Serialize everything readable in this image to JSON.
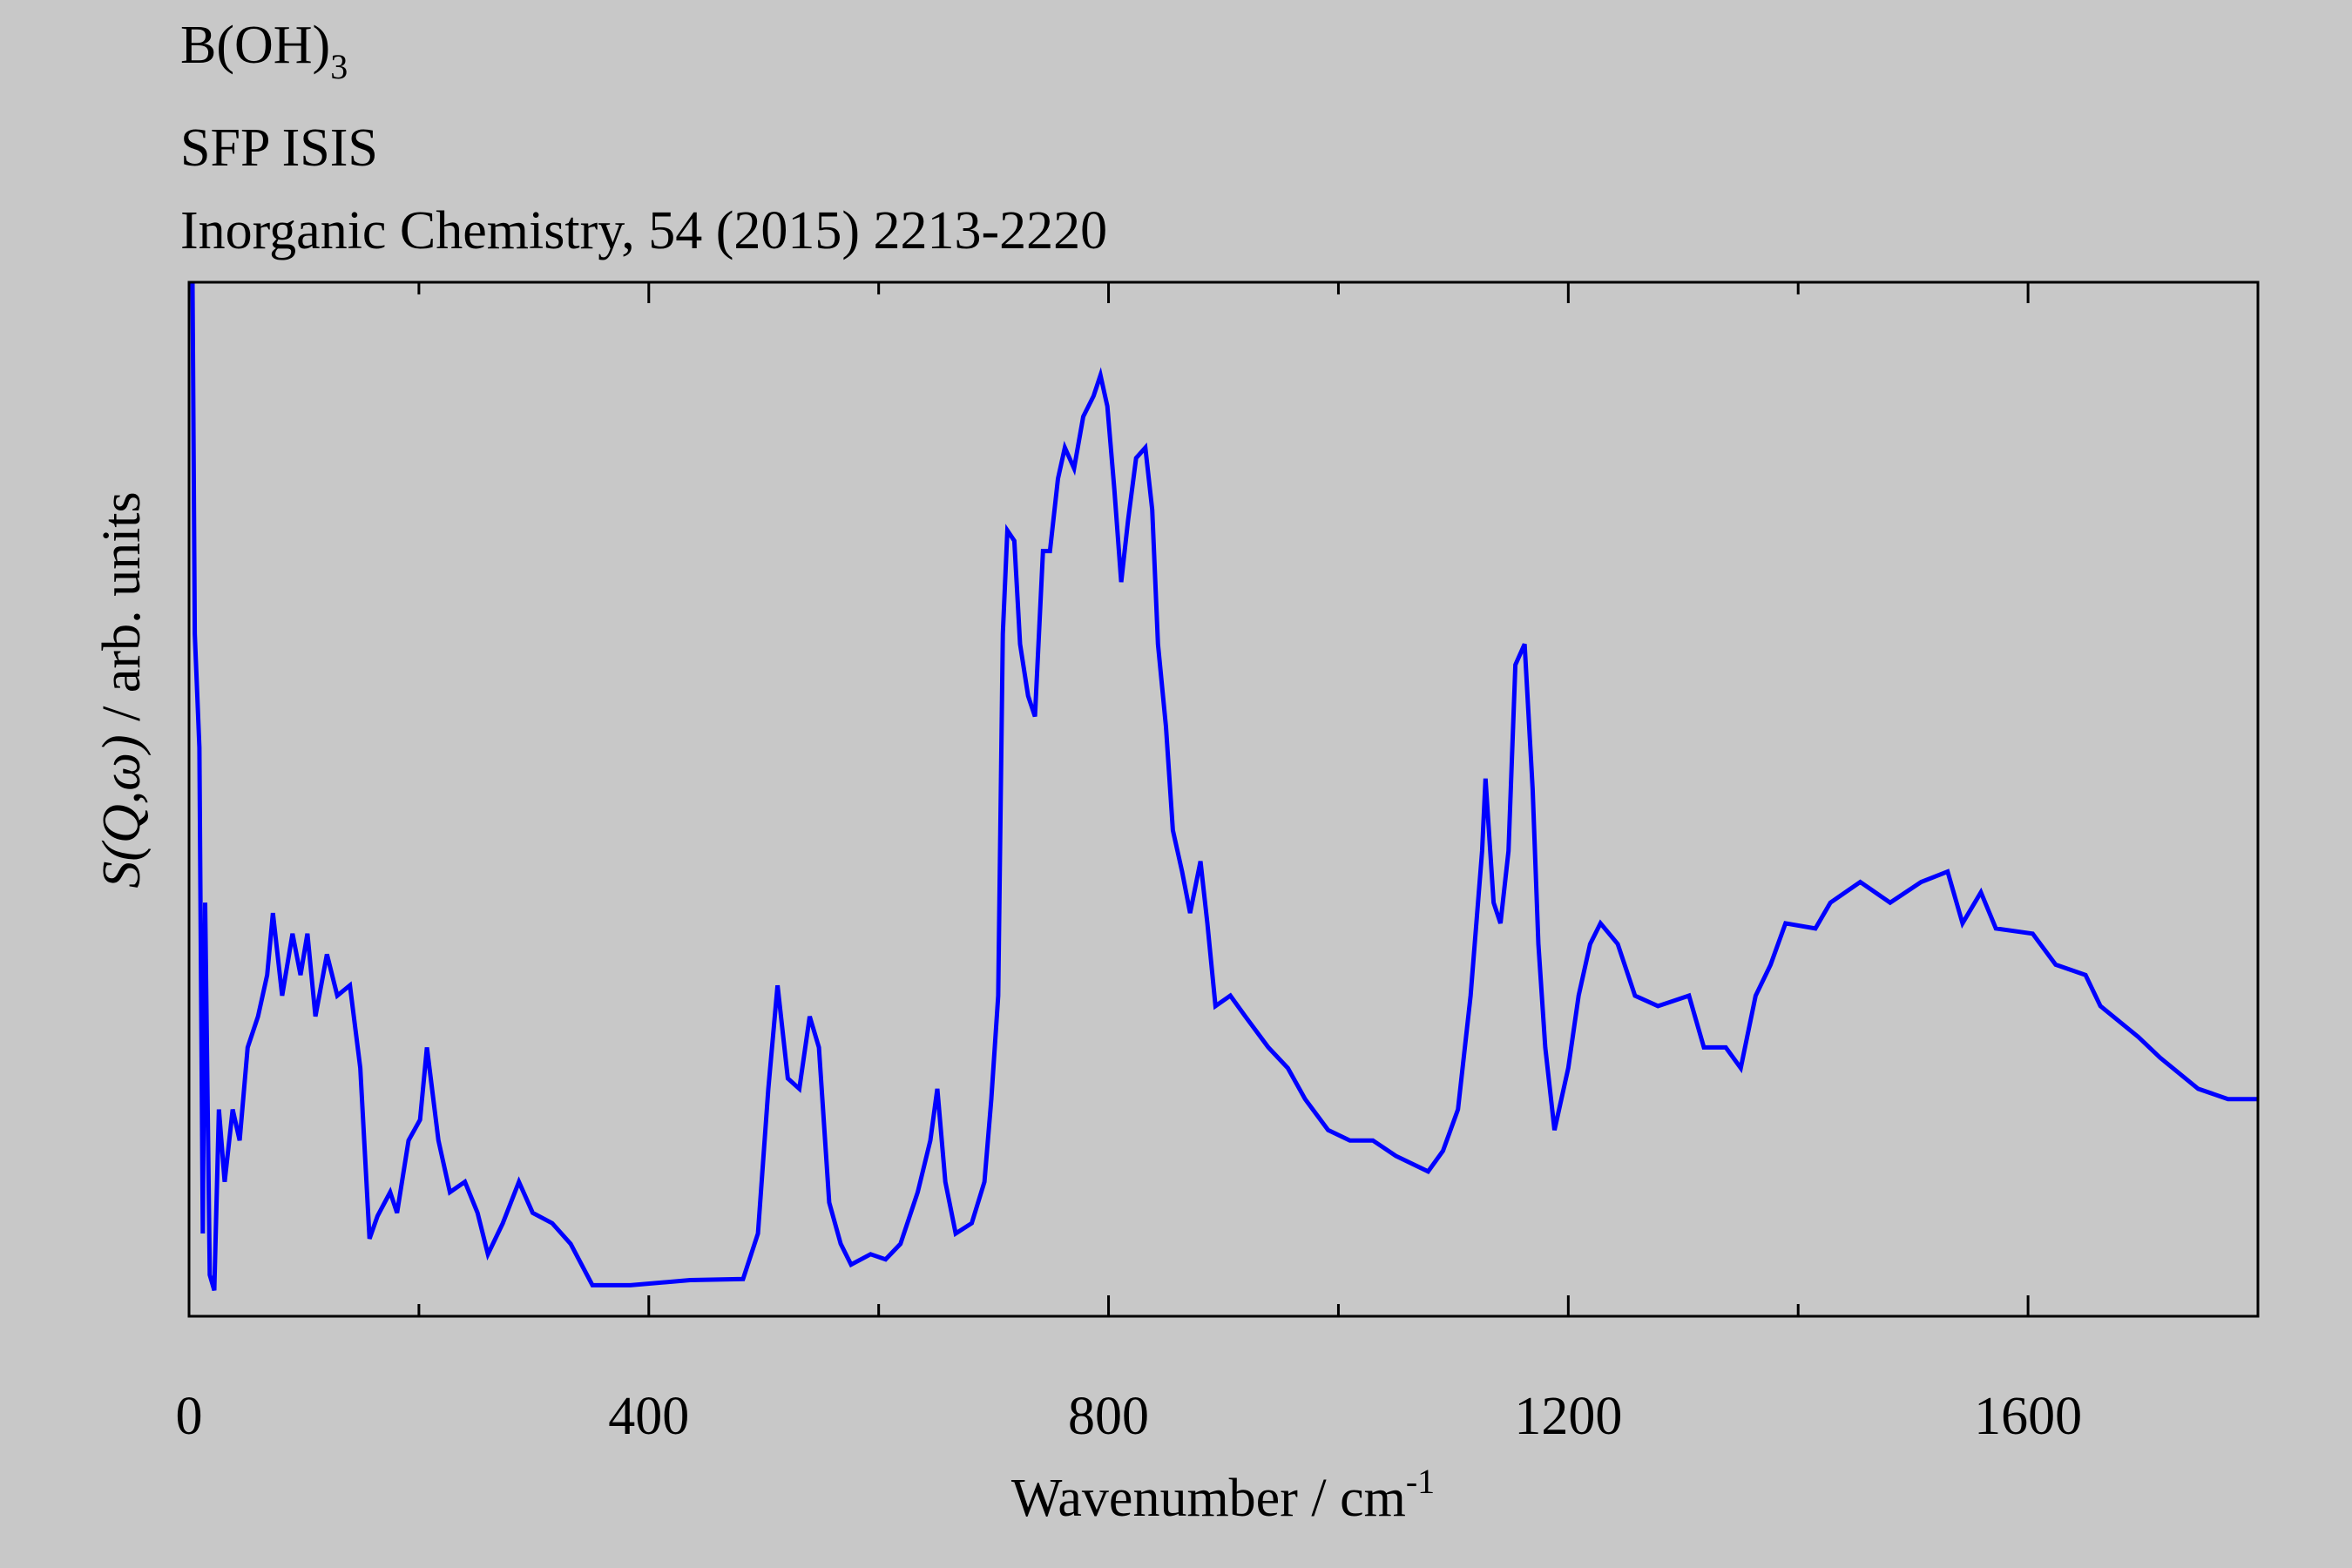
{
  "chart_data": {
    "type": "line",
    "compound": "B(OH)",
    "compound_subscript": "3",
    "subtitle": "SFP ISIS",
    "reference": "Inorganic Chemistry, 54 (2015) 2213-2220",
    "xlabel": "Wavenumber / cm",
    "xlabel_superscript": "-1",
    "ylabel_symbol": "S(Q,ω)",
    "ylabel_unit": " / arb. units",
    "xlim": [
      0,
      1800
    ],
    "xticks": [
      0,
      400,
      800,
      1200,
      1600
    ],
    "xminor_ticks": [
      200,
      600,
      1000,
      1400
    ],
    "ylim": [
      0,
      1
    ],
    "series": [
      {
        "color": "#0000ff",
        "x": [
          3,
          5,
          9,
          12,
          14,
          18,
          22,
          26,
          31,
          38,
          44,
          51,
          60,
          68,
          73,
          81,
          90,
          97,
          103,
          110,
          120,
          129,
          140,
          149,
          157,
          164,
          175,
          181,
          191,
          201,
          207,
          217,
          227,
          240,
          251,
          260,
          273,
          287,
          299,
          316,
          332,
          351,
          384,
          436,
          482,
          495,
          504,
          512,
          521,
          531,
          540,
          548,
          557,
          567,
          576,
          593,
          606,
          619,
          634,
          645,
          651,
          658,
          667,
          681,
          692,
          698,
          704,
          708,
          712,
          718,
          723,
          730,
          736,
          743,
          749,
          756,
          762,
          770,
          778,
          787,
          793,
          799,
          805,
          811,
          817,
          824,
          832,
          838,
          843,
          850,
          856,
          864,
          871,
          880,
          886,
          893,
          906,
          919,
          939,
          956,
          971,
          991,
          1010,
          1030,
          1050,
          1078,
          1091,
          1104,
          1115,
          1125,
          1128,
          1135,
          1141,
          1148,
          1154,
          1162,
          1169,
          1174,
          1180,
          1188,
          1200,
          1209,
          1219,
          1228,
          1243,
          1258,
          1278,
          1305,
          1318,
          1337,
          1350,
          1363,
          1376,
          1389,
          1415,
          1428,
          1454,
          1480,
          1507,
          1530,
          1543,
          1559,
          1572,
          1604,
          1624,
          1650,
          1663,
          1696,
          1715,
          1748,
          1774,
          1800
        ],
        "values": [
          1.0,
          0.66,
          0.55,
          0.08,
          0.4,
          0.04,
          0.025,
          0.2,
          0.13,
          0.2,
          0.17,
          0.26,
          0.29,
          0.33,
          0.39,
          0.31,
          0.37,
          0.33,
          0.37,
          0.29,
          0.35,
          0.31,
          0.32,
          0.24,
          0.075,
          0.097,
          0.12,
          0.1,
          0.17,
          0.19,
          0.26,
          0.17,
          0.12,
          0.13,
          0.1,
          0.06,
          0.09,
          0.13,
          0.1,
          0.09,
          0.07,
          0.03,
          0.03,
          0.035,
          0.036,
          0.08,
          0.22,
          0.32,
          0.23,
          0.22,
          0.29,
          0.26,
          0.11,
          0.07,
          0.05,
          0.06,
          0.055,
          0.07,
          0.12,
          0.17,
          0.22,
          0.13,
          0.08,
          0.09,
          0.13,
          0.21,
          0.31,
          0.66,
          0.76,
          0.75,
          0.65,
          0.6,
          0.58,
          0.74,
          0.74,
          0.81,
          0.84,
          0.82,
          0.87,
          0.89,
          0.91,
          0.88,
          0.8,
          0.71,
          0.77,
          0.83,
          0.84,
          0.78,
          0.65,
          0.57,
          0.47,
          0.43,
          0.39,
          0.44,
          0.38,
          0.3,
          0.31,
          0.29,
          0.26,
          0.24,
          0.21,
          0.18,
          0.17,
          0.17,
          0.155,
          0.14,
          0.16,
          0.2,
          0.31,
          0.45,
          0.52,
          0.4,
          0.38,
          0.45,
          0.63,
          0.65,
          0.51,
          0.36,
          0.26,
          0.18,
          0.24,
          0.31,
          0.36,
          0.38,
          0.36,
          0.31,
          0.3,
          0.31,
          0.26,
          0.26,
          0.24,
          0.31,
          0.34,
          0.38,
          0.375,
          0.4,
          0.42,
          0.4,
          0.42,
          0.43,
          0.38,
          0.41,
          0.375,
          0.37,
          0.34,
          0.33,
          0.3,
          0.27,
          0.25,
          0.22,
          0.21,
          0.21
        ]
      }
    ]
  }
}
